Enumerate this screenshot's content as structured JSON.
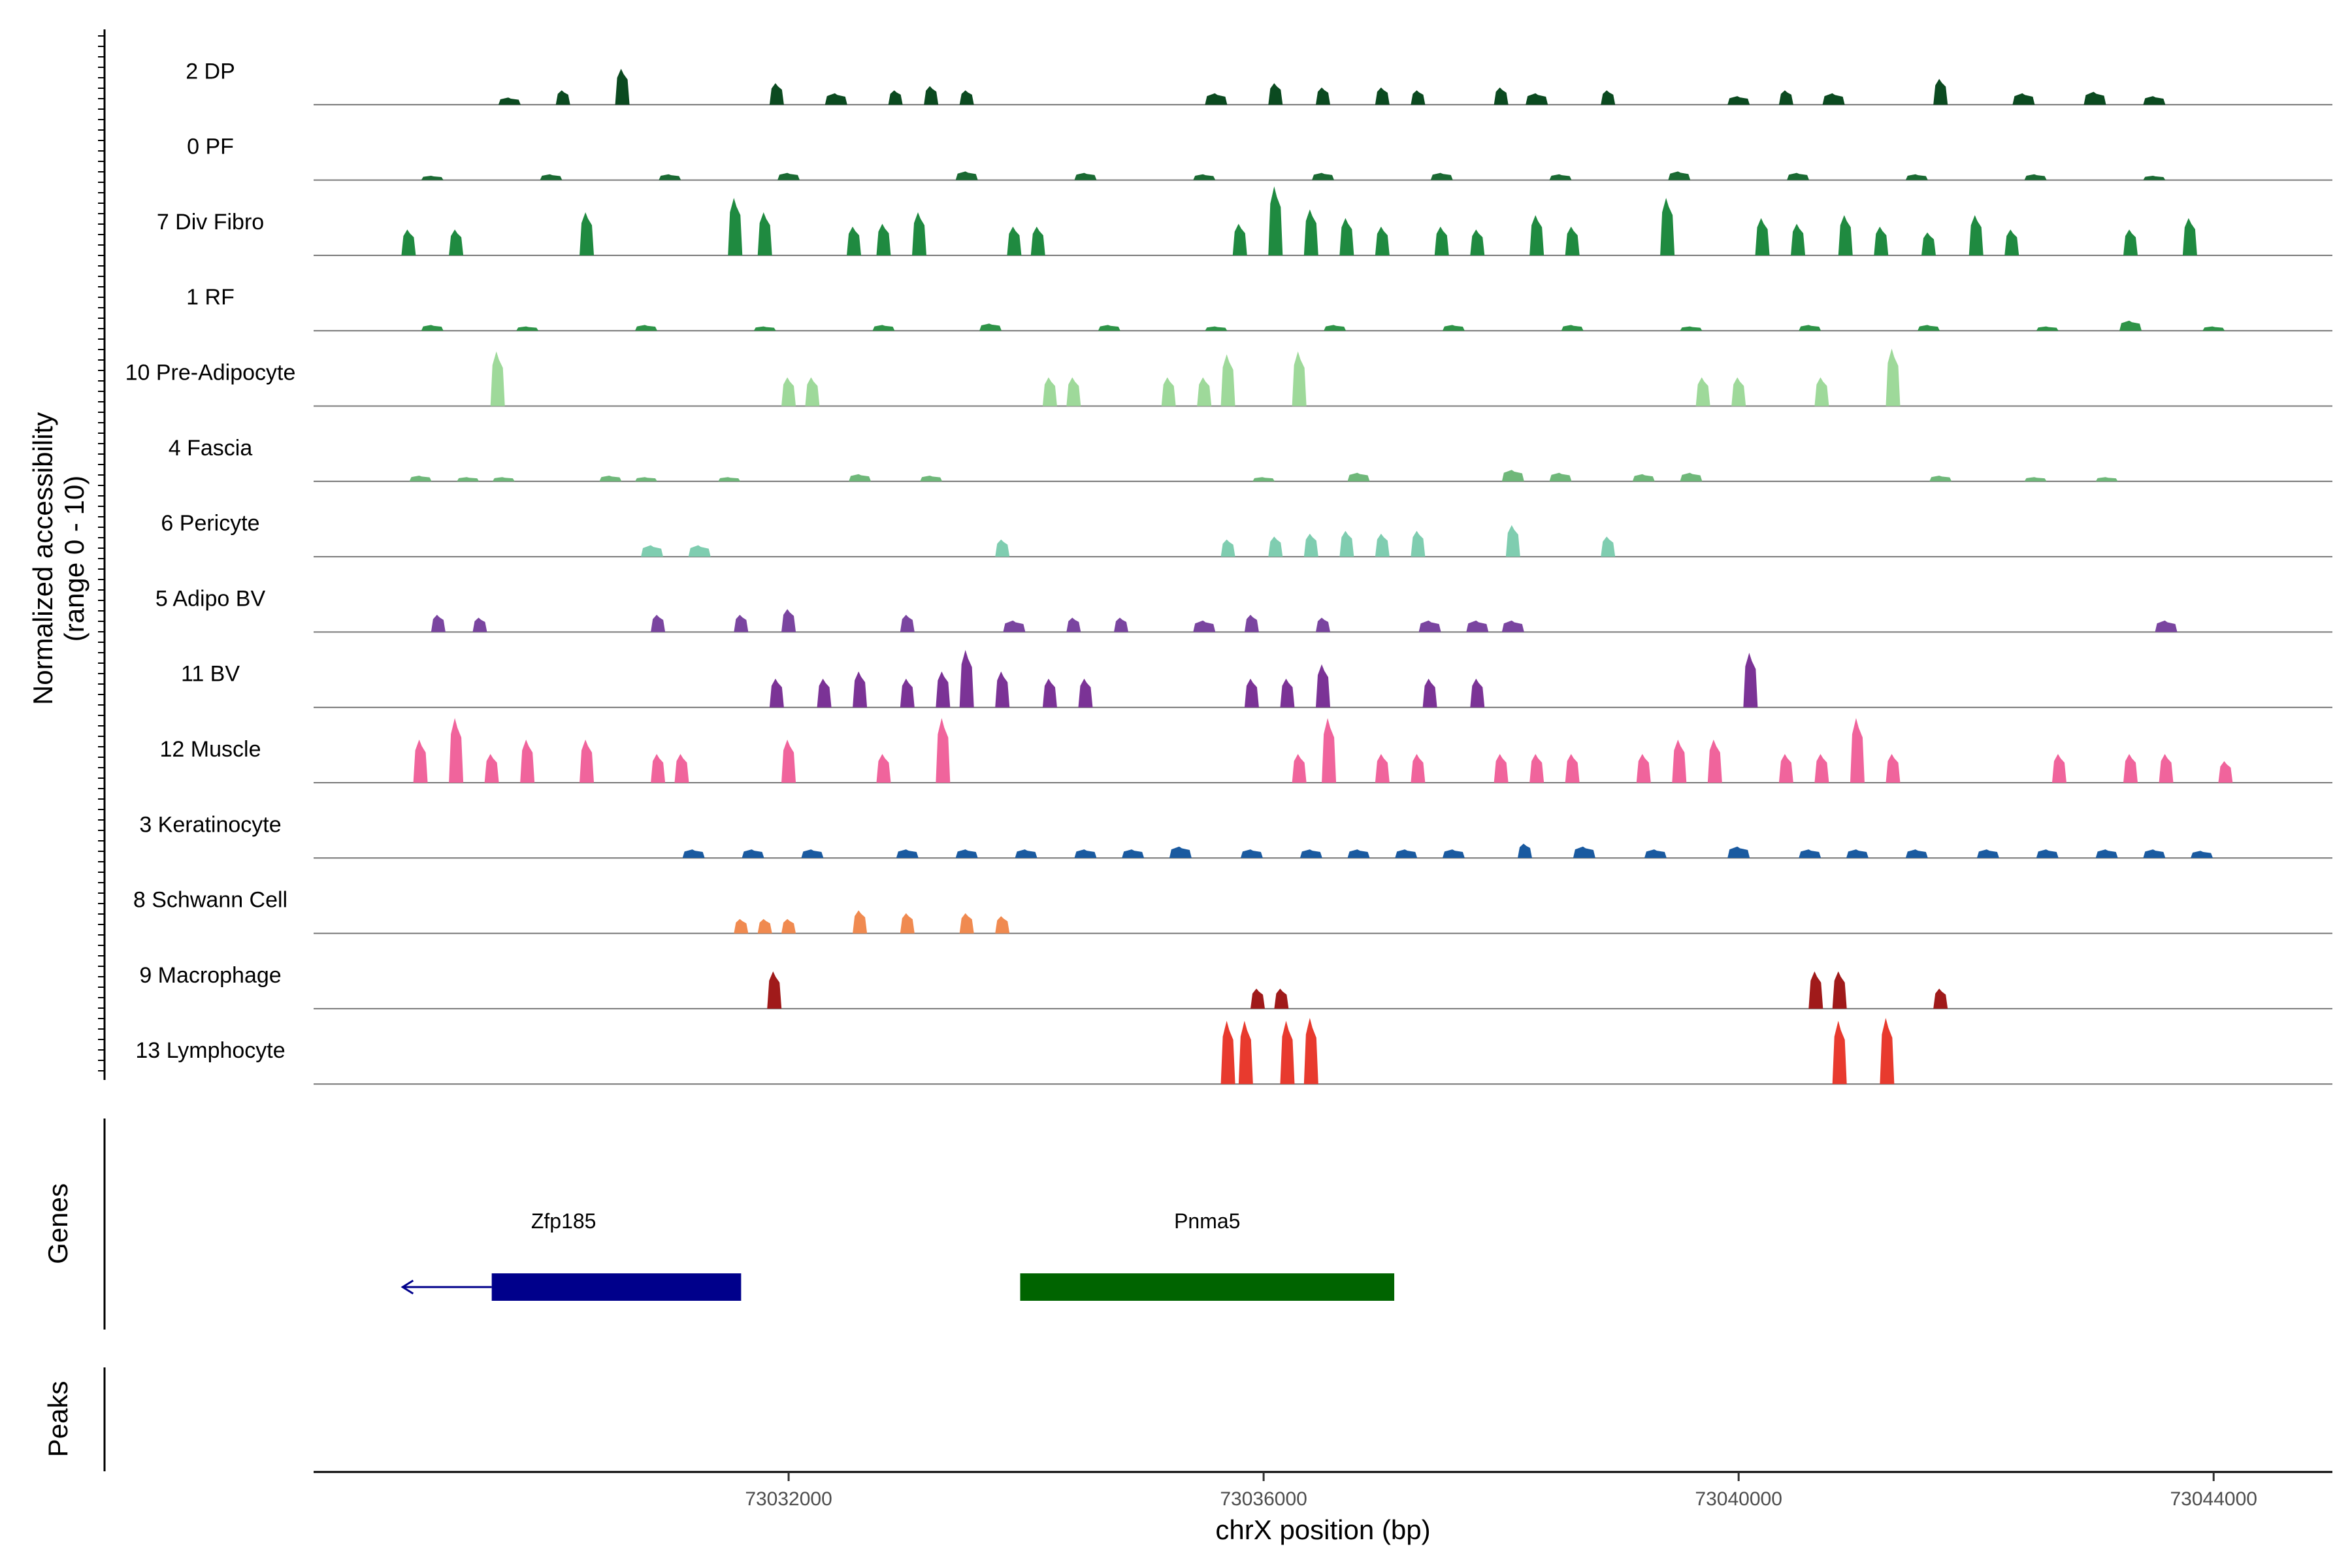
{
  "chart_data": {
    "type": "area",
    "title": "",
    "xlabel": "chrX position (bp)",
    "ylabel": [
      "Normalized accessibility",
      "(range 0 - 10)"
    ],
    "ylim": [
      0,
      10
    ],
    "xlim": [
      73028000,
      73045000
    ],
    "x_ticks": [
      {
        "value": 73032000,
        "label": "73032000"
      },
      {
        "value": 73036000,
        "label": "73036000"
      },
      {
        "value": 73040000,
        "label": "73040000"
      },
      {
        "value": 73044000,
        "label": "73044000"
      }
    ],
    "panel_labels": {
      "genes": "Genes",
      "peaks": "Peaks"
    },
    "tracks": [
      {
        "name": "2 DP",
        "color": "#0b4a20",
        "peaks": [
          [
            73029650,
            0.5
          ],
          [
            73030100,
            1.0
          ],
          [
            73030600,
            2.5
          ],
          [
            73031900,
            1.5
          ],
          [
            73032400,
            0.8
          ],
          [
            73032900,
            1.0
          ],
          [
            73033200,
            1.3
          ],
          [
            73033500,
            1.0
          ],
          [
            73035600,
            0.8
          ],
          [
            73036100,
            1.5
          ],
          [
            73036500,
            1.2
          ],
          [
            73037000,
            1.2
          ],
          [
            73037300,
            1.0
          ],
          [
            73038000,
            1.2
          ],
          [
            73038300,
            0.8
          ],
          [
            73038900,
            1.0
          ],
          [
            73040000,
            0.6
          ],
          [
            73040400,
            1.0
          ],
          [
            73040800,
            0.8
          ],
          [
            73041700,
            1.8
          ],
          [
            73042400,
            0.8
          ],
          [
            73043000,
            0.9
          ],
          [
            73043500,
            0.6
          ]
        ]
      },
      {
        "name": "0 PF",
        "color": "#1a6a33",
        "peaks": [
          [
            73029000,
            0.3
          ],
          [
            73030000,
            0.4
          ],
          [
            73031000,
            0.4
          ],
          [
            73032000,
            0.5
          ],
          [
            73033500,
            0.6
          ],
          [
            73034500,
            0.5
          ],
          [
            73035500,
            0.4
          ],
          [
            73036500,
            0.5
          ],
          [
            73037500,
            0.5
          ],
          [
            73038500,
            0.4
          ],
          [
            73039500,
            0.6
          ],
          [
            73040500,
            0.5
          ],
          [
            73041500,
            0.4
          ],
          [
            73042500,
            0.4
          ],
          [
            73043500,
            0.3
          ]
        ]
      },
      {
        "name": "7 Div Fibro",
        "color": "#1f8a40",
        "peaks": [
          [
            73028800,
            1.8
          ],
          [
            73029200,
            1.8
          ],
          [
            73030300,
            3.0
          ],
          [
            73031550,
            4.0
          ],
          [
            73031800,
            3.0
          ],
          [
            73032550,
            2.0
          ],
          [
            73032800,
            2.2
          ],
          [
            73033100,
            3.0
          ],
          [
            73033900,
            2.0
          ],
          [
            73034100,
            2.0
          ],
          [
            73035800,
            2.2
          ],
          [
            73036100,
            4.8
          ],
          [
            73036400,
            3.2
          ],
          [
            73036700,
            2.6
          ],
          [
            73037000,
            2.0
          ],
          [
            73037500,
            2.0
          ],
          [
            73037800,
            1.8
          ],
          [
            73038300,
            2.8
          ],
          [
            73038600,
            2.0
          ],
          [
            73039400,
            4.0
          ],
          [
            73040200,
            2.6
          ],
          [
            73040500,
            2.2
          ],
          [
            73040900,
            2.8
          ],
          [
            73041200,
            2.0
          ],
          [
            73041600,
            1.6
          ],
          [
            73042000,
            2.8
          ],
          [
            73042300,
            1.8
          ],
          [
            73043300,
            1.8
          ],
          [
            73043800,
            2.6
          ]
        ]
      },
      {
        "name": "1 RF",
        "color": "#2e9448",
        "peaks": [
          [
            73029000,
            0.4
          ],
          [
            73029800,
            0.3
          ],
          [
            73030800,
            0.4
          ],
          [
            73031800,
            0.3
          ],
          [
            73032800,
            0.4
          ],
          [
            73033700,
            0.5
          ],
          [
            73034700,
            0.4
          ],
          [
            73035600,
            0.3
          ],
          [
            73036600,
            0.4
          ],
          [
            73037600,
            0.4
          ],
          [
            73038600,
            0.4
          ],
          [
            73039600,
            0.3
          ],
          [
            73040600,
            0.4
          ],
          [
            73041600,
            0.4
          ],
          [
            73042600,
            0.3
          ],
          [
            73043300,
            0.7
          ],
          [
            73044000,
            0.3
          ]
        ]
      },
      {
        "name": "10 Pre-Adipocyte",
        "color": "#9ed99a",
        "peaks": [
          [
            73029550,
            3.8
          ],
          [
            73032000,
            2.0
          ],
          [
            73032200,
            2.0
          ],
          [
            73034200,
            2.0
          ],
          [
            73034400,
            2.0
          ],
          [
            73035200,
            2.0
          ],
          [
            73035500,
            2.0
          ],
          [
            73035700,
            3.6
          ],
          [
            73036300,
            3.8
          ],
          [
            73039700,
            2.0
          ],
          [
            73040000,
            2.0
          ],
          [
            73040700,
            2.0
          ],
          [
            73041300,
            4.0
          ]
        ]
      },
      {
        "name": "4 Fascia",
        "color": "#6fb87a",
        "peaks": [
          [
            73028900,
            0.4
          ],
          [
            73029300,
            0.3
          ],
          [
            73029600,
            0.3
          ],
          [
            73030500,
            0.4
          ],
          [
            73030800,
            0.3
          ],
          [
            73031500,
            0.3
          ],
          [
            73032600,
            0.5
          ],
          [
            73033200,
            0.4
          ],
          [
            73036000,
            0.3
          ],
          [
            73036800,
            0.6
          ],
          [
            73038100,
            0.8
          ],
          [
            73038500,
            0.6
          ],
          [
            73039200,
            0.5
          ],
          [
            73039600,
            0.6
          ],
          [
            73041700,
            0.4
          ],
          [
            73042500,
            0.3
          ],
          [
            73043100,
            0.3
          ]
        ]
      },
      {
        "name": "6 Pericyte",
        "color": "#7fcdb0",
        "peaks": [
          [
            73030850,
            0.8
          ],
          [
            73031250,
            0.8
          ],
          [
            73033800,
            1.2
          ],
          [
            73035700,
            1.2
          ],
          [
            73036100,
            1.4
          ],
          [
            73036400,
            1.6
          ],
          [
            73036700,
            1.8
          ],
          [
            73037000,
            1.6
          ],
          [
            73037300,
            1.8
          ],
          [
            73038100,
            2.2
          ],
          [
            73038900,
            1.4
          ]
        ]
      },
      {
        "name": "5 Adipo BV",
        "color": "#7a45a0",
        "peaks": [
          [
            73029050,
            1.2
          ],
          [
            73029400,
            1.0
          ],
          [
            73030900,
            1.2
          ],
          [
            73031600,
            1.2
          ],
          [
            73032000,
            1.6
          ],
          [
            73033000,
            1.2
          ],
          [
            73033900,
            0.8
          ],
          [
            73034400,
            1.0
          ],
          [
            73034800,
            1.0
          ],
          [
            73035500,
            0.8
          ],
          [
            73035900,
            1.2
          ],
          [
            73036500,
            1.0
          ],
          [
            73037400,
            0.8
          ],
          [
            73037800,
            0.8
          ],
          [
            73038100,
            0.8
          ],
          [
            73043600,
            0.8
          ]
        ]
      },
      {
        "name": "11 BV",
        "color": "#7b3396",
        "peaks": [
          [
            73031900,
            2.0
          ],
          [
            73032300,
            2.0
          ],
          [
            73032600,
            2.5
          ],
          [
            73033000,
            2.0
          ],
          [
            73033300,
            2.5
          ],
          [
            73033500,
            4.0
          ],
          [
            73033800,
            2.5
          ],
          [
            73034200,
            2.0
          ],
          [
            73034500,
            2.0
          ],
          [
            73035900,
            2.0
          ],
          [
            73036200,
            2.0
          ],
          [
            73036500,
            3.0
          ],
          [
            73037400,
            2.0
          ],
          [
            73037800,
            2.0
          ],
          [
            73040100,
            3.8
          ]
        ]
      },
      {
        "name": "12 Muscle",
        "color": "#f0649c",
        "peaks": [
          [
            73028900,
            3.0
          ],
          [
            73029200,
            4.5
          ],
          [
            73029500,
            2.0
          ],
          [
            73029800,
            3.0
          ],
          [
            73030300,
            3.0
          ],
          [
            73030900,
            2.0
          ],
          [
            73031100,
            2.0
          ],
          [
            73032000,
            3.0
          ],
          [
            73032800,
            2.0
          ],
          [
            73033300,
            4.5
          ],
          [
            73036300,
            2.0
          ],
          [
            73036550,
            4.5
          ],
          [
            73037000,
            2.0
          ],
          [
            73037300,
            2.0
          ],
          [
            73038000,
            2.0
          ],
          [
            73038300,
            2.0
          ],
          [
            73038600,
            2.0
          ],
          [
            73039200,
            2.0
          ],
          [
            73039500,
            3.0
          ],
          [
            73039800,
            3.0
          ],
          [
            73040400,
            2.0
          ],
          [
            73040700,
            2.0
          ],
          [
            73041000,
            4.5
          ],
          [
            73041300,
            2.0
          ],
          [
            73042700,
            2.0
          ],
          [
            73043300,
            2.0
          ],
          [
            73043600,
            2.0
          ],
          [
            73044100,
            1.5
          ]
        ]
      },
      {
        "name": "3 Keratinocyte",
        "color": "#1a5aa0",
        "peaks": [
          [
            73031200,
            0.6
          ],
          [
            73031700,
            0.6
          ],
          [
            73032200,
            0.6
          ],
          [
            73033000,
            0.6
          ],
          [
            73033500,
            0.6
          ],
          [
            73034000,
            0.6
          ],
          [
            73034500,
            0.6
          ],
          [
            73034900,
            0.6
          ],
          [
            73035300,
            0.8
          ],
          [
            73035900,
            0.6
          ],
          [
            73036400,
            0.6
          ],
          [
            73036800,
            0.6
          ],
          [
            73037200,
            0.6
          ],
          [
            73037600,
            0.6
          ],
          [
            73038200,
            1.0
          ],
          [
            73038700,
            0.8
          ],
          [
            73039300,
            0.6
          ],
          [
            73040000,
            0.8
          ],
          [
            73040600,
            0.6
          ],
          [
            73041000,
            0.6
          ],
          [
            73041500,
            0.6
          ],
          [
            73042100,
            0.6
          ],
          [
            73042600,
            0.6
          ],
          [
            73043100,
            0.6
          ],
          [
            73043500,
            0.6
          ],
          [
            73043900,
            0.5
          ]
        ]
      },
      {
        "name": "8 Schwann Cell",
        "color": "#f08a50",
        "peaks": [
          [
            73031600,
            1.0
          ],
          [
            73031800,
            1.0
          ],
          [
            73032000,
            1.0
          ],
          [
            73032600,
            1.6
          ],
          [
            73033000,
            1.4
          ],
          [
            73033500,
            1.4
          ],
          [
            73033800,
            1.2
          ]
        ]
      },
      {
        "name": "9 Macrophage",
        "color": "#a01a1a",
        "peaks": [
          [
            73031880,
            2.6
          ],
          [
            73035950,
            1.4
          ],
          [
            73036150,
            1.4
          ],
          [
            73040650,
            2.6
          ],
          [
            73040850,
            2.6
          ],
          [
            73041700,
            1.4
          ]
        ]
      },
      {
        "name": "13 Lymphocyte",
        "color": "#e83a2e",
        "peaks": [
          [
            73035700,
            4.4
          ],
          [
            73035850,
            4.4
          ],
          [
            73036200,
            4.4
          ],
          [
            73036400,
            4.6
          ],
          [
            73040850,
            4.4
          ],
          [
            73041250,
            4.6
          ]
        ]
      }
    ],
    "genes": [
      {
        "name": "Zfp185",
        "intron_start": 73028750,
        "exon_start": 73029500,
        "end": 73031600,
        "strand": "-",
        "color": "#00008b"
      },
      {
        "name": "Pnma5",
        "intron_start": 73033950,
        "exon_start": 73033950,
        "end": 73037100,
        "strand": "+",
        "color": "#006400"
      }
    ],
    "peaks_panel": []
  }
}
